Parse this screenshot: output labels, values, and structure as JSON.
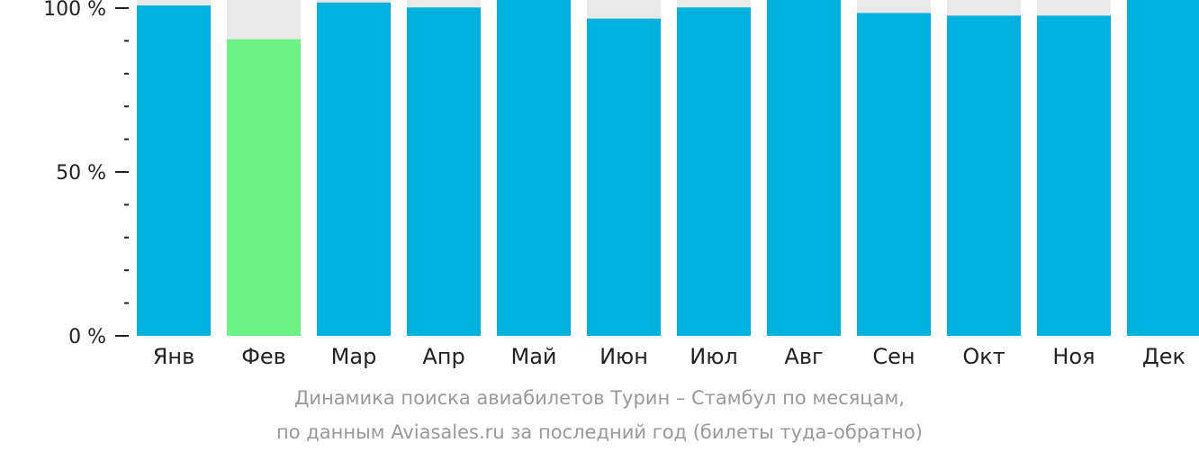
{
  "colors": {
    "bar": "#00b0dd",
    "bar_highlight": "#6cf285",
    "bar_background": "#e9e9e9",
    "axis": "#222222",
    "caption": "#999999"
  },
  "chart_data": {
    "type": "bar",
    "title": "Динамика поиска авиабилетов Турин – Стамбул по месяцам,",
    "subtitle": "по данным Aviasales.ru за последний год (билеты туда-обратно)",
    "xlabel": "",
    "ylabel": "",
    "ylim": [
      0,
      100
    ],
    "yticks": [
      {
        "value": 0,
        "label": "0 %"
      },
      {
        "value": 50,
        "label": "50 %"
      },
      {
        "value": 100,
        "label": "100 %"
      }
    ],
    "minor_ticks_every": 10,
    "grid": false,
    "legend": "none",
    "highlighted_category": "Фев",
    "categories": [
      "Янв",
      "Фев",
      "Мар",
      "Апр",
      "Май",
      "Июн",
      "Июл",
      "Авг",
      "Сен",
      "Окт",
      "Ноя",
      "Дек"
    ],
    "values": [
      100.8,
      90.5,
      101.7,
      100.2,
      103.2,
      96.8,
      100.2,
      103.2,
      98.5,
      97.7,
      97.7,
      103.2
    ]
  }
}
